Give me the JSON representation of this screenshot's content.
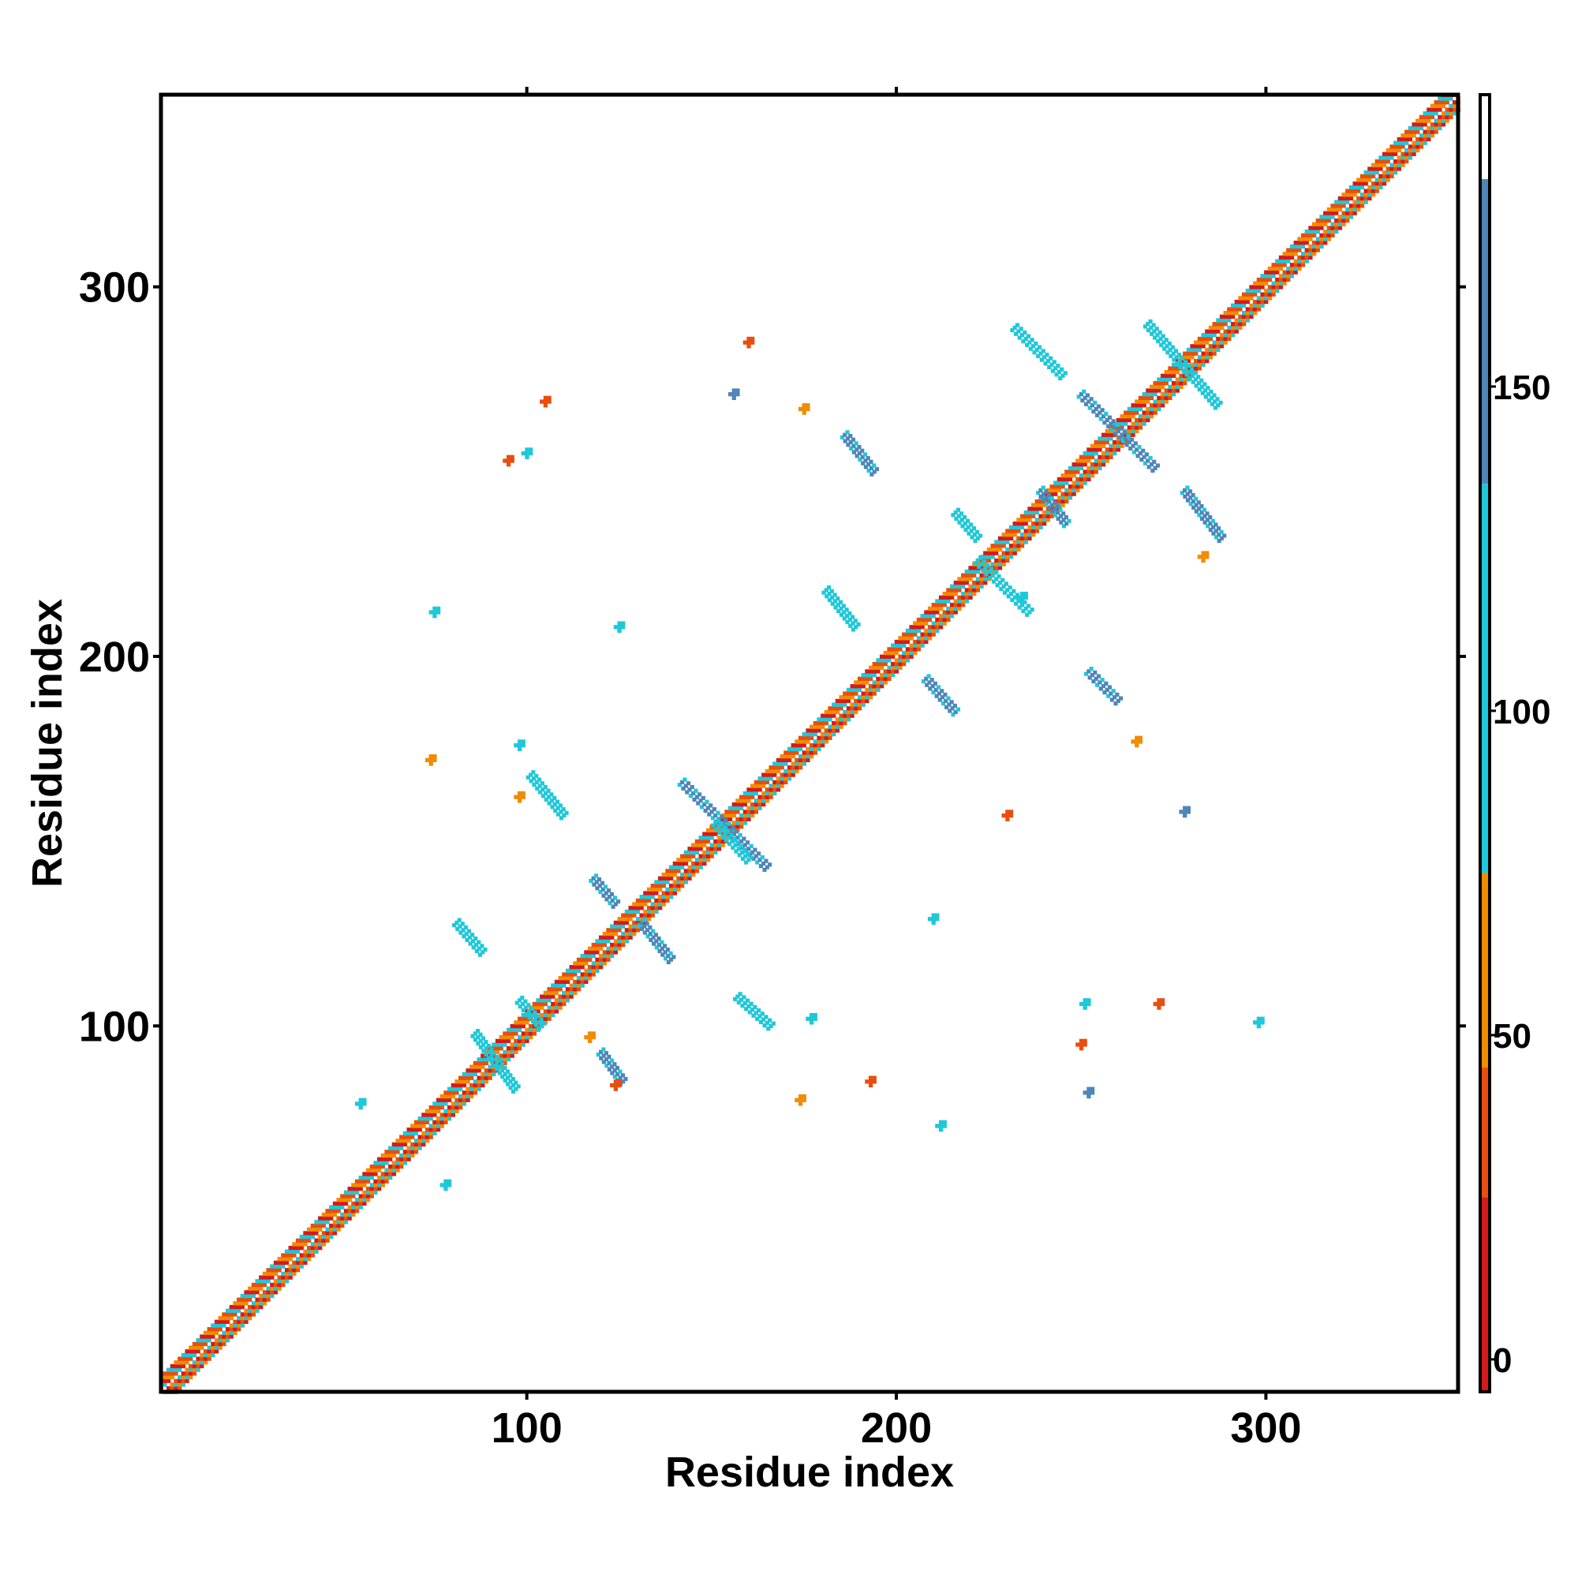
{
  "chart_data": {
    "type": "heatmap",
    "title": "",
    "xlabel": "Residue index",
    "ylabel": "Residue index",
    "xlim": [
      1,
      352
    ],
    "ylim": [
      1,
      352
    ],
    "x_ticks": [
      100,
      200,
      300
    ],
    "y_ticks": [
      100,
      200,
      300
    ],
    "colorbar": {
      "ticks": [
        0,
        50,
        100,
        150
      ],
      "range": [
        -5,
        195
      ],
      "segments": [
        {
          "from": -5,
          "to": 25,
          "color": "#d7191c"
        },
        {
          "from": 25,
          "to": 45,
          "color": "#e84e0f"
        },
        {
          "from": 45,
          "to": 75,
          "color": "#f08c00"
        },
        {
          "from": 75,
          "to": 135,
          "color": "#1ec8d8"
        },
        {
          "from": 135,
          "to": 182,
          "color": "#4f86b8"
        },
        {
          "from": 182,
          "to": 195,
          "color": "#ffffff"
        }
      ]
    },
    "diagonal": {
      "start": 1,
      "end": 352,
      "band_colors": [
        "#d7191c",
        "#f08c00",
        "#e84e0f",
        "#1ec8d8"
      ]
    },
    "features": [
      {
        "type": "streak",
        "x1": 142,
        "y1": 166,
        "x2": 165,
        "y2": 143,
        "value": 150
      },
      {
        "type": "streak",
        "x1": 151,
        "y1": 155,
        "x2": 160,
        "y2": 145,
        "value": 105
      },
      {
        "type": "streak",
        "x1": 86,
        "y1": 98,
        "x2": 97,
        "y2": 83,
        "value": 120
      },
      {
        "type": "streak",
        "x1": 98,
        "y1": 107,
        "x2": 104,
        "y2": 100,
        "value": 120
      },
      {
        "type": "streak",
        "x1": 101,
        "y1": 168,
        "x2": 110,
        "y2": 157,
        "value": 120
      },
      {
        "type": "streak",
        "x1": 118,
        "y1": 140,
        "x2": 124,
        "y2": 133,
        "value": 145
      },
      {
        "type": "streak",
        "x1": 131,
        "y1": 128,
        "x2": 139,
        "y2": 118,
        "value": 140
      },
      {
        "type": "streak",
        "x1": 81,
        "y1": 128,
        "x2": 88,
        "y2": 120,
        "value": 130
      },
      {
        "type": "streak",
        "x1": 120,
        "y1": 93,
        "x2": 126,
        "y2": 85,
        "value": 145
      },
      {
        "type": "streak",
        "x1": 157,
        "y1": 108,
        "x2": 166,
        "y2": 100,
        "value": 120
      },
      {
        "type": "streak",
        "x1": 186,
        "y1": 260,
        "x2": 194,
        "y2": 250,
        "value": 145
      },
      {
        "type": "streak",
        "x1": 181,
        "y1": 218,
        "x2": 189,
        "y2": 208,
        "value": 120
      },
      {
        "type": "streak",
        "x1": 208,
        "y1": 194,
        "x2": 216,
        "y2": 185,
        "value": 145
      },
      {
        "type": "streak",
        "x1": 232,
        "y1": 289,
        "x2": 245,
        "y2": 276,
        "value": 120
      },
      {
        "type": "streak",
        "x1": 250,
        "y1": 271,
        "x2": 270,
        "y2": 251,
        "value": 150
      },
      {
        "type": "streak",
        "x1": 268,
        "y1": 290,
        "x2": 287,
        "y2": 268,
        "value": 125
      },
      {
        "type": "streak",
        "x1": 278,
        "y1": 245,
        "x2": 288,
        "y2": 232,
        "value": 150
      },
      {
        "type": "streak",
        "x1": 239,
        "y1": 245,
        "x2": 246,
        "y2": 236,
        "value": 140
      },
      {
        "type": "streak",
        "x1": 216,
        "y1": 239,
        "x2": 222,
        "y2": 232,
        "value": 120
      },
      {
        "type": "streak",
        "x1": 222,
        "y1": 226,
        "x2": 236,
        "y2": 212,
        "value": 120
      },
      {
        "type": "streak",
        "x1": 252,
        "y1": 196,
        "x2": 260,
        "y2": 188,
        "value": 150
      },
      {
        "type": "blob",
        "x": 95,
        "y": 253,
        "value": 40
      },
      {
        "type": "blob",
        "x": 105,
        "y": 269,
        "value": 40
      },
      {
        "type": "blob",
        "x": 100,
        "y": 255,
        "value": 130
      },
      {
        "type": "blob",
        "x": 75,
        "y": 212,
        "value": 110
      },
      {
        "type": "blob",
        "x": 125,
        "y": 208,
        "value": 130
      },
      {
        "type": "blob",
        "x": 74,
        "y": 172,
        "value": 60
      },
      {
        "type": "blob",
        "x": 98,
        "y": 176,
        "value": 100
      },
      {
        "type": "blob",
        "x": 98,
        "y": 162,
        "value": 55
      },
      {
        "type": "blob",
        "x": 175,
        "y": 267,
        "value": 55
      },
      {
        "type": "blob",
        "x": 177,
        "y": 102,
        "value": 100
      },
      {
        "type": "blob",
        "x": 174,
        "y": 80,
        "value": 60
      },
      {
        "type": "blob",
        "x": 212,
        "y": 73,
        "value": 110
      },
      {
        "type": "blob",
        "x": 193,
        "y": 85,
        "value": 25
      },
      {
        "type": "blob",
        "x": 250,
        "y": 95,
        "value": 40
      },
      {
        "type": "blob",
        "x": 251,
        "y": 106,
        "value": 125
      },
      {
        "type": "blob",
        "x": 265,
        "y": 177,
        "value": 60
      },
      {
        "type": "blob",
        "x": 234,
        "y": 216,
        "value": 110
      },
      {
        "type": "blob",
        "x": 230,
        "y": 157,
        "value": 25
      },
      {
        "type": "blob",
        "x": 210,
        "y": 129,
        "value": 125
      },
      {
        "type": "blob",
        "x": 78,
        "y": 57,
        "value": 120
      },
      {
        "type": "blob",
        "x": 55,
        "y": 79,
        "value": 130
      },
      {
        "type": "blob",
        "x": 160,
        "y": 285,
        "value": 40
      },
      {
        "type": "blob",
        "x": 156,
        "y": 271,
        "value": 150
      },
      {
        "type": "blob",
        "x": 271,
        "y": 106,
        "value": 30
      },
      {
        "type": "blob",
        "x": 283,
        "y": 227,
        "value": 60
      },
      {
        "type": "blob",
        "x": 124,
        "y": 84,
        "value": 40
      },
      {
        "type": "blob",
        "x": 117,
        "y": 97,
        "value": 60
      },
      {
        "type": "blob",
        "x": 252,
        "y": 82,
        "value": 150
      },
      {
        "type": "blob",
        "x": 278,
        "y": 158,
        "value": 140
      },
      {
        "type": "blob",
        "x": 298,
        "y": 101,
        "value": 110
      }
    ]
  }
}
